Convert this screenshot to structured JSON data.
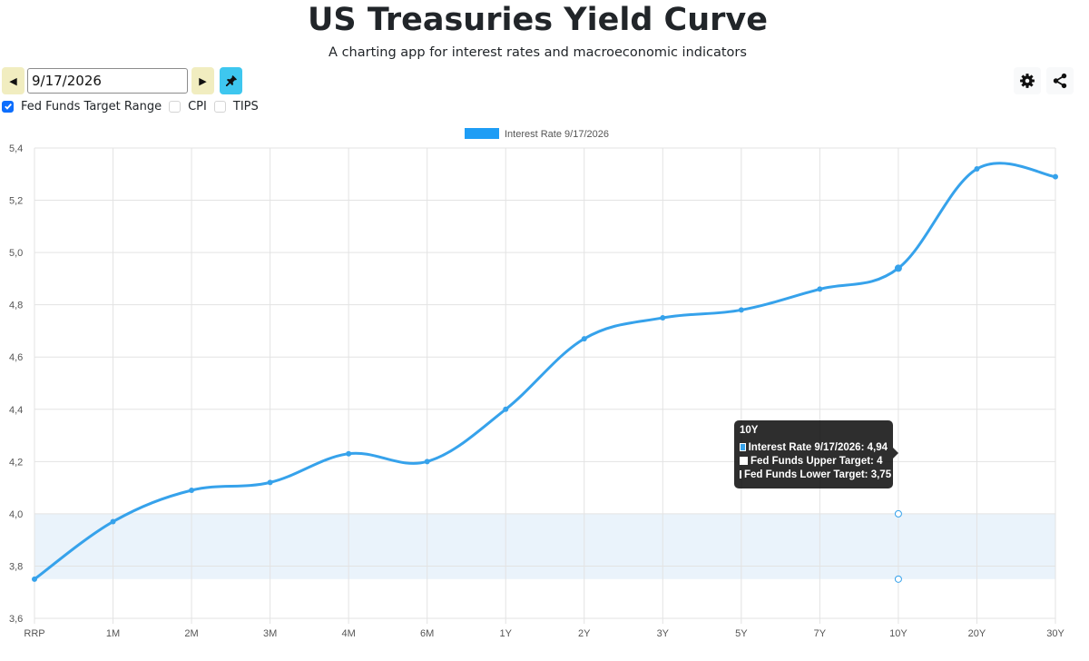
{
  "header": {
    "title": "US Treasuries Yield Curve",
    "subtitle": "A charting app for interest rates and macroeconomic indicators"
  },
  "controls": {
    "date_value": "9/17/2026",
    "checkboxes": [
      {
        "label": "Fed Funds Target Range",
        "checked": true
      },
      {
        "label": "CPI",
        "checked": false
      },
      {
        "label": "TIPS",
        "checked": false
      }
    ]
  },
  "icons": {
    "prev": "caret-left-icon",
    "next": "caret-right-icon",
    "pin": "pin-icon",
    "settings": "gear-icon",
    "share": "share-icon"
  },
  "colors": {
    "series": "#36a2eb",
    "legend_box": "#1e9df5",
    "band_fill": "#eaf3fb",
    "nav_button": "#f1edc0",
    "pin_button": "#3ec7ef",
    "checkbox_on": "#0d6efd"
  },
  "chart_data": {
    "type": "line",
    "categories": [
      "RRP",
      "1M",
      "2M",
      "3M",
      "4M",
      "6M",
      "1Y",
      "2Y",
      "3Y",
      "5Y",
      "7Y",
      "10Y",
      "20Y",
      "30Y"
    ],
    "series": [
      {
        "name": "Interest Rate 9/17/2026",
        "values": [
          3.75,
          3.97,
          4.09,
          4.12,
          4.23,
          4.2,
          4.4,
          4.67,
          4.75,
          4.78,
          4.86,
          4.94,
          5.32,
          5.29
        ]
      }
    ],
    "fed_funds_range": {
      "upper": 4,
      "lower": 3.75
    },
    "ylim": [
      3.6,
      5.4
    ],
    "yticks": [
      "3,6",
      "3,8",
      "4,0",
      "4,2",
      "4,4",
      "4,6",
      "4,8",
      "5,0",
      "5,2",
      "5,4"
    ],
    "grid": true,
    "legend": "top-center",
    "tooltip": {
      "title": "10Y",
      "lines": [
        "Interest Rate 9/17/2026: 4,94",
        "Fed Funds Upper Target: 4",
        "Fed Funds Lower Target: 3,75"
      ]
    }
  }
}
